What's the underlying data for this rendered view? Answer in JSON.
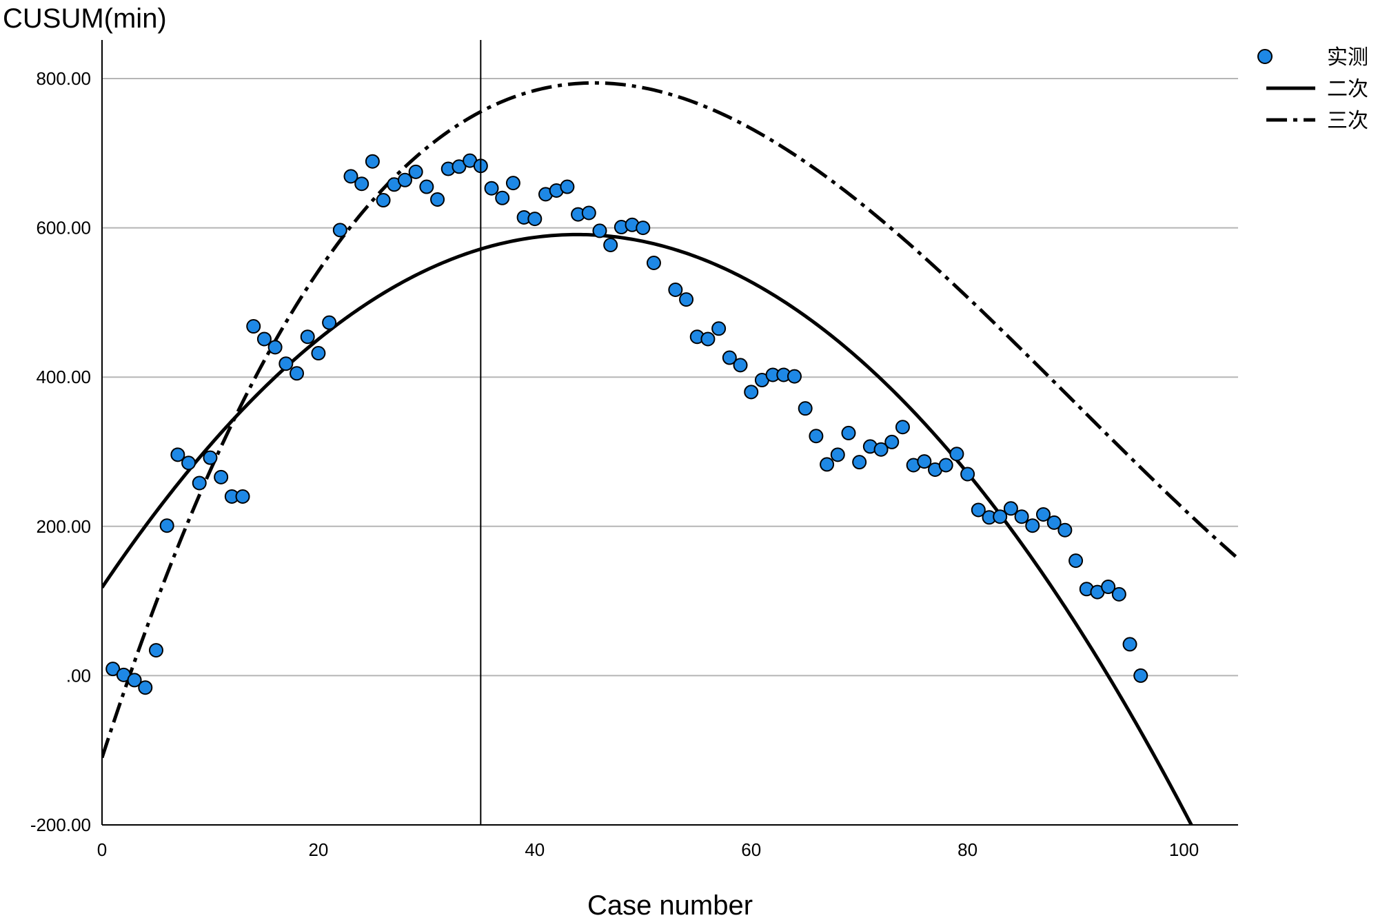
{
  "chart_data": {
    "type": "scatter",
    "title": "",
    "ylabel": "CUSUM(min)",
    "xlabel": "Case number",
    "xlim": [
      0,
      105
    ],
    "ylim": [
      -200,
      800
    ],
    "x_ticks": [
      0,
      20,
      40,
      60,
      80,
      100
    ],
    "x_tick_labels": [
      "0",
      "20",
      "40",
      "60",
      "80",
      "100"
    ],
    "y_ticks": [
      -200,
      0,
      200,
      400,
      600,
      800
    ],
    "y_tick_labels": [
      "-200.00",
      ".00",
      "200.00",
      "400.00",
      "600.00",
      "800.00"
    ],
    "grid": "horizontal",
    "legend_position": "top-right",
    "reference_line_x": 35,
    "series": [
      {
        "name": "实测",
        "kind": "scatter",
        "color": "#1e88e5",
        "points": [
          [
            1,
            9
          ],
          [
            2,
            1
          ],
          [
            3,
            -6
          ],
          [
            4,
            -16
          ],
          [
            5,
            34
          ],
          [
            6,
            201
          ],
          [
            7,
            296
          ],
          [
            8,
            285
          ],
          [
            9,
            258
          ],
          [
            10,
            292
          ],
          [
            11,
            266
          ],
          [
            12,
            240
          ],
          [
            13,
            240
          ],
          [
            14,
            468
          ],
          [
            15,
            451
          ],
          [
            16,
            440
          ],
          [
            17,
            418
          ],
          [
            18,
            405
          ],
          [
            19,
            454
          ],
          [
            20,
            432
          ],
          [
            21,
            473
          ],
          [
            22,
            597
          ],
          [
            23,
            669
          ],
          [
            24,
            659
          ],
          [
            25,
            689
          ],
          [
            26,
            637
          ],
          [
            27,
            658
          ],
          [
            28,
            664
          ],
          [
            29,
            675
          ],
          [
            30,
            655
          ],
          [
            31,
            638
          ],
          [
            32,
            679
          ],
          [
            33,
            682
          ],
          [
            34,
            690
          ],
          [
            35,
            683
          ],
          [
            36,
            653
          ],
          [
            37,
            640
          ],
          [
            38,
            660
          ],
          [
            39,
            614
          ],
          [
            40,
            612
          ],
          [
            41,
            645
          ],
          [
            42,
            650
          ],
          [
            43,
            655
          ],
          [
            44,
            618
          ],
          [
            45,
            620
          ],
          [
            46,
            596
          ],
          [
            47,
            577
          ],
          [
            48,
            601
          ],
          [
            49,
            604
          ],
          [
            50,
            600
          ],
          [
            51,
            553
          ],
          [
            53,
            517
          ],
          [
            54,
            504
          ],
          [
            55,
            454
          ],
          [
            56,
            451
          ],
          [
            57,
            465
          ],
          [
            58,
            426
          ],
          [
            59,
            416
          ],
          [
            60,
            380
          ],
          [
            61,
            396
          ],
          [
            62,
            403
          ],
          [
            63,
            403
          ],
          [
            64,
            401
          ],
          [
            65,
            358
          ],
          [
            66,
            321
          ],
          [
            67,
            283
          ],
          [
            68,
            296
          ],
          [
            69,
            325
          ],
          [
            70,
            286
          ],
          [
            71,
            307
          ],
          [
            72,
            303
          ],
          [
            73,
            313
          ],
          [
            74,
            333
          ],
          [
            75,
            282
          ],
          [
            76,
            287
          ],
          [
            77,
            276
          ],
          [
            78,
            282
          ],
          [
            79,
            297
          ],
          [
            80,
            270
          ],
          [
            81,
            222
          ],
          [
            82,
            212
          ],
          [
            83,
            213
          ],
          [
            84,
            224
          ],
          [
            85,
            213
          ],
          [
            86,
            201
          ],
          [
            87,
            216
          ],
          [
            88,
            205
          ],
          [
            89,
            195
          ],
          [
            90,
            154
          ],
          [
            91,
            116
          ],
          [
            92,
            112
          ],
          [
            93,
            119
          ],
          [
            94,
            109
          ],
          [
            95,
            42
          ],
          [
            96,
            0
          ]
        ]
      },
      {
        "name": "二次",
        "kind": "line",
        "style": "solid",
        "color": "#000000",
        "fit": "quadratic",
        "coefficients": [
          118,
          21.545,
          -0.24535
        ]
      },
      {
        "name": "三次",
        "kind": "line",
        "style": "dash-dot",
        "color": "#000000",
        "fit": "cubic",
        "coefficients": [
          -110,
          44.83,
          -0.66,
          0.00245
        ]
      }
    ]
  }
}
